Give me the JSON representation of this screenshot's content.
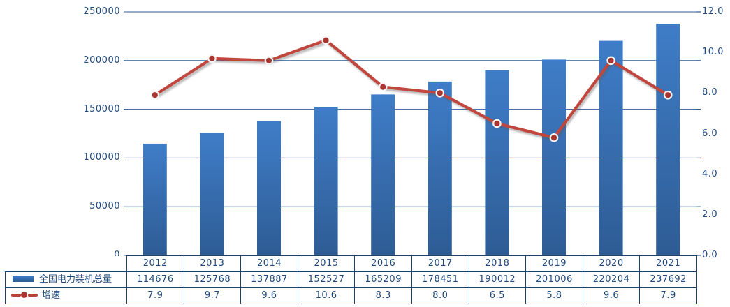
{
  "chart_data": {
    "type": "bar",
    "subtype": "combo-bar-line-dual-axis",
    "title": "",
    "categories": [
      "2012",
      "2013",
      "2014",
      "2015",
      "2016",
      "2017",
      "2018",
      "2019",
      "2020",
      "2021"
    ],
    "series": [
      {
        "name": "全国电力装机总量",
        "type": "bar",
        "axis": "left",
        "values": [
          114676,
          125768,
          137887,
          152527,
          165209,
          178451,
          190012,
          201006,
          220204,
          237692
        ]
      },
      {
        "name": "增速",
        "type": "line",
        "axis": "right",
        "values": [
          7.9,
          9.7,
          9.6,
          10.6,
          8.3,
          8.0,
          6.5,
          5.8,
          9.6,
          7.9
        ]
      }
    ],
    "left_axis": {
      "min": 0,
      "max": 250000,
      "tick_labels": [
        "0",
        "50000",
        "100000",
        "150000",
        "200000",
        "250000"
      ]
    },
    "right_axis": {
      "min": 0,
      "max": 12,
      "tick_labels": [
        "0.0",
        "2.0",
        "4.0",
        "6.0",
        "8.0",
        "10.0",
        "12.0"
      ]
    },
    "grid": "horizontal",
    "legend_position": "data-table-left",
    "data_table_shown": true,
    "colors": {
      "bar_gradient_top": "#3F7DC8",
      "bar_gradient_bottom": "#2E5C94",
      "line": "#C0463E",
      "marker_fill": "#A93530",
      "marker_ring": "#F4F4F4",
      "gridline": "#2D5A96",
      "axis_text": "#1F497D",
      "table_border": "#1D4068"
    }
  }
}
